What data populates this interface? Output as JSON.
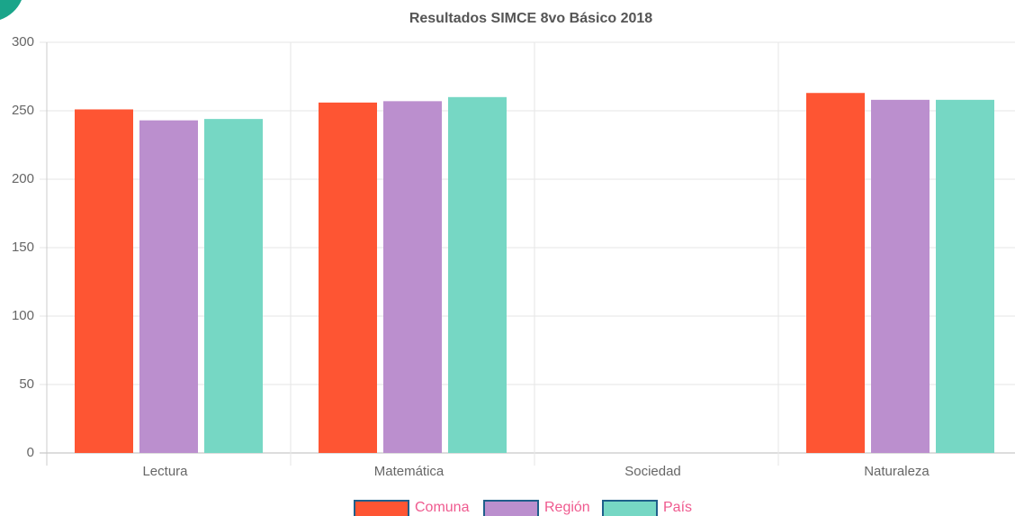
{
  "chart_data": {
    "type": "bar",
    "title": "Resultados SIMCE 8vo Básico 2018",
    "categories": [
      "Lectura",
      "Matemática",
      "Sociedad",
      "Naturaleza"
    ],
    "series": [
      {
        "name": "Comuna",
        "color": "#fe5533",
        "values": [
          251,
          256,
          null,
          263
        ]
      },
      {
        "name": "Región",
        "color": "#bb8fce",
        "values": [
          243,
          257,
          null,
          258
        ]
      },
      {
        "name": "País",
        "color": "#76d7c4",
        "values": [
          244,
          260,
          null,
          258
        ]
      }
    ],
    "ylim": [
      0,
      300
    ],
    "yticks": [
      0,
      50,
      100,
      150,
      200,
      250,
      300
    ],
    "grid": true,
    "legend": "bottom"
  }
}
